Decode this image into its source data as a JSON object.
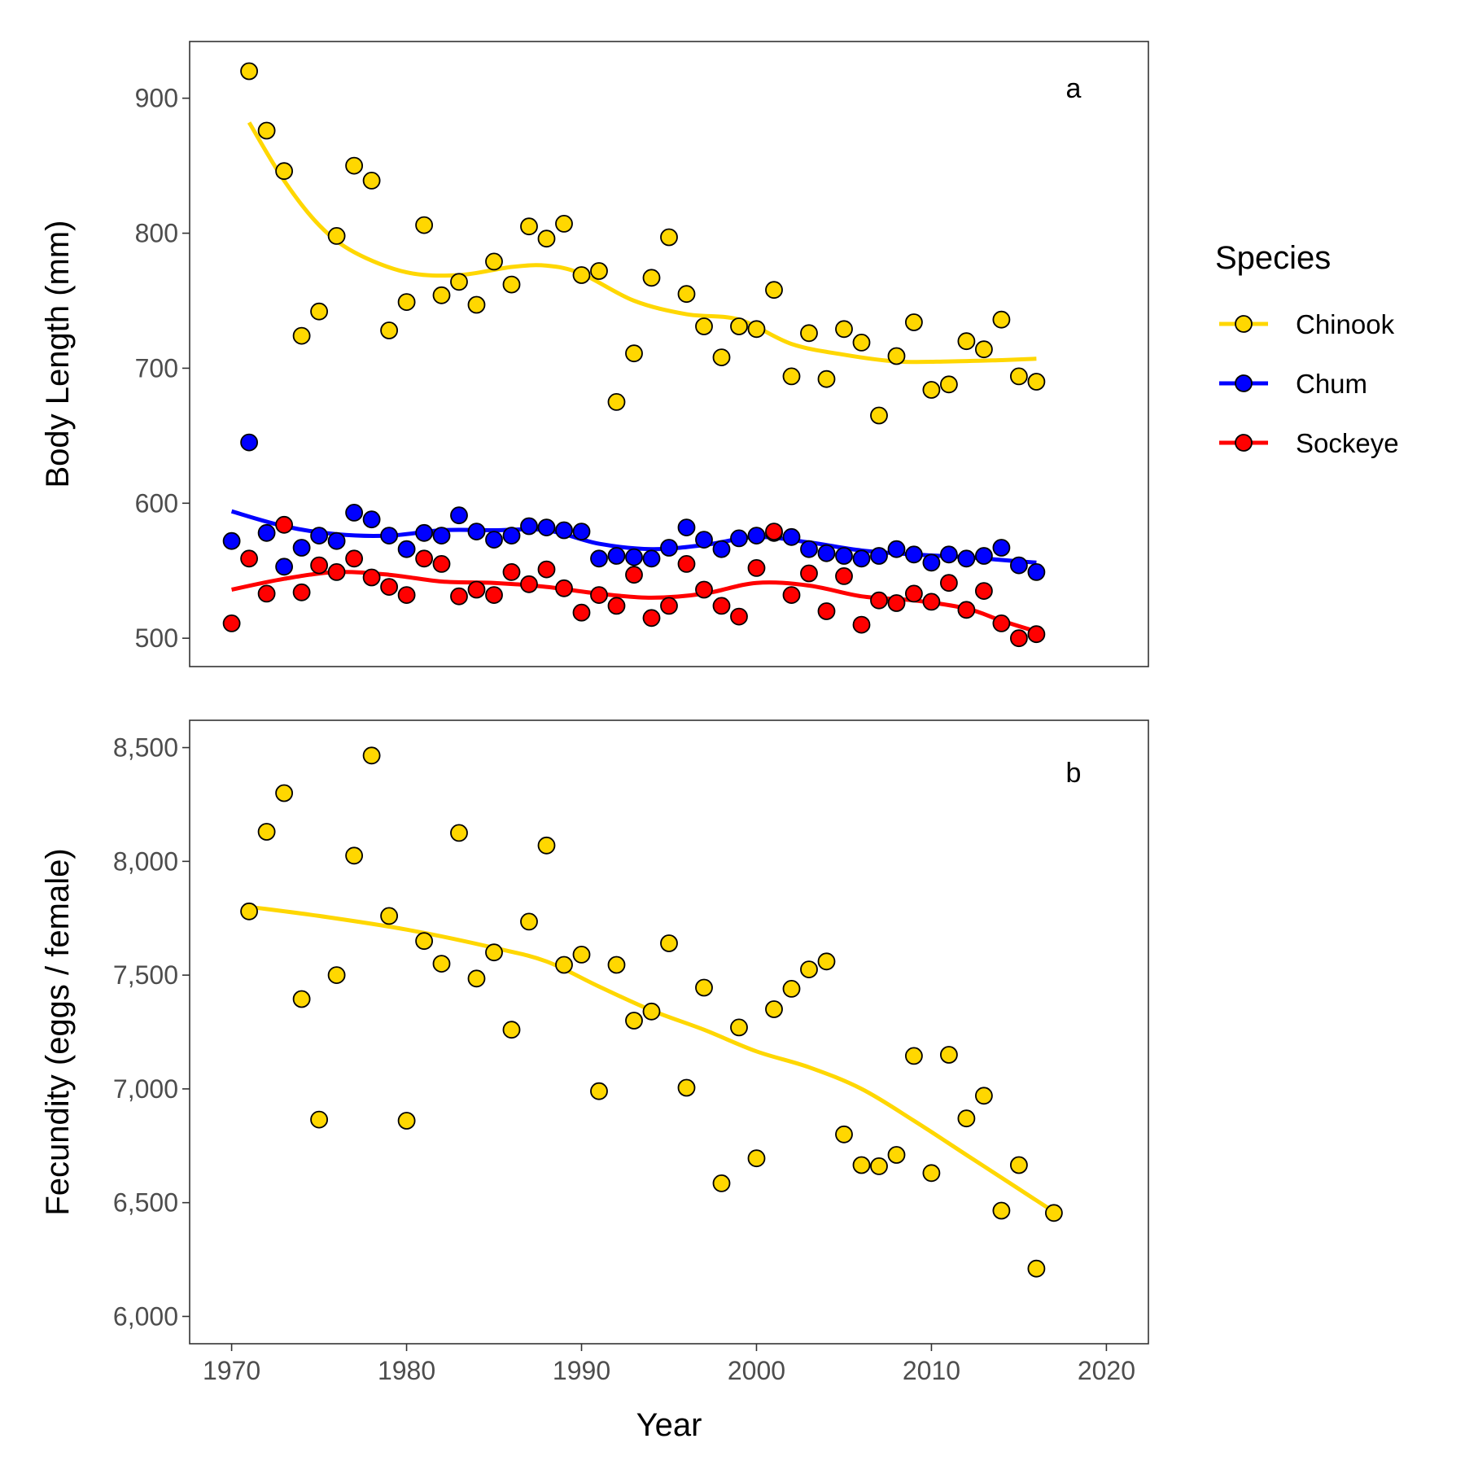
{
  "chart_data": [
    {
      "type": "scatter",
      "panel_tag": "a",
      "ylabel": "Body Length (mm)",
      "xlabel": "",
      "xlim": [
        1967.6,
        2022.4
      ],
      "ylim": [
        479,
        942
      ],
      "y_ticks": [
        500,
        600,
        700,
        800,
        900
      ],
      "y_tick_labels": [
        "500",
        "600",
        "700",
        "800",
        "900"
      ],
      "x_ticks_shown": false,
      "grid": false,
      "series": [
        {
          "name": "Chinook",
          "color": "#FFD700",
          "points": [
            [
              1971,
              920
            ],
            [
              1972,
              876
            ],
            [
              1973,
              846
            ],
            [
              1974,
              724
            ],
            [
              1975,
              742
            ],
            [
              1976,
              798
            ],
            [
              1977,
              850
            ],
            [
              1978,
              839
            ],
            [
              1979,
              728
            ],
            [
              1980,
              749
            ],
            [
              1981,
              806
            ],
            [
              1982,
              754
            ],
            [
              1983,
              764
            ],
            [
              1984,
              747
            ],
            [
              1985,
              779
            ],
            [
              1986,
              762
            ],
            [
              1987,
              805
            ],
            [
              1988,
              796
            ],
            [
              1989,
              807
            ],
            [
              1990,
              769
            ],
            [
              1991,
              772
            ],
            [
              1992,
              675
            ],
            [
              1993,
              711
            ],
            [
              1994,
              767
            ],
            [
              1995,
              797
            ],
            [
              1996,
              755
            ],
            [
              1997,
              731
            ],
            [
              1998,
              708
            ],
            [
              1999,
              731
            ],
            [
              2000,
              729
            ],
            [
              2001,
              758
            ],
            [
              2002,
              694
            ],
            [
              2003,
              726
            ],
            [
              2004,
              692
            ],
            [
              2005,
              729
            ],
            [
              2006,
              719
            ],
            [
              2007,
              665
            ],
            [
              2008,
              709
            ],
            [
              2009,
              734
            ],
            [
              2010,
              684
            ],
            [
              2011,
              688
            ],
            [
              2012,
              720
            ],
            [
              2013,
              714
            ],
            [
              2014,
              736
            ],
            [
              2015,
              694
            ],
            [
              2016,
              690
            ]
          ],
          "trend": [
            [
              1971,
              882
            ],
            [
              1973,
              839
            ],
            [
              1975,
              806
            ],
            [
              1977,
              786
            ],
            [
              1980,
              771
            ],
            [
              1983,
              769
            ],
            [
              1986,
              775
            ],
            [
              1988,
              776
            ],
            [
              1990,
              770
            ],
            [
              1993,
              750
            ],
            [
              1996,
              740
            ],
            [
              1999,
              736
            ],
            [
              2002,
              718
            ],
            [
              2005,
              710
            ],
            [
              2008,
              705
            ],
            [
              2011,
              705
            ],
            [
              2014,
              706
            ],
            [
              2016,
              707
            ]
          ]
        },
        {
          "name": "Chum",
          "color": "#0000FF",
          "points": [
            [
              1970,
              572
            ],
            [
              1971,
              645
            ],
            [
              1972,
              578
            ],
            [
              1973,
              553
            ],
            [
              1974,
              567
            ],
            [
              1975,
              576
            ],
            [
              1976,
              572
            ],
            [
              1977,
              593
            ],
            [
              1978,
              588
            ],
            [
              1979,
              576
            ],
            [
              1980,
              566
            ],
            [
              1981,
              578
            ],
            [
              1982,
              576
            ],
            [
              1983,
              591
            ],
            [
              1984,
              579
            ],
            [
              1985,
              573
            ],
            [
              1986,
              576
            ],
            [
              1987,
              583
            ],
            [
              1988,
              582
            ],
            [
              1989,
              580
            ],
            [
              1990,
              579
            ],
            [
              1991,
              559
            ],
            [
              1992,
              561
            ],
            [
              1993,
              560
            ],
            [
              1994,
              559
            ],
            [
              1995,
              567
            ],
            [
              1996,
              582
            ],
            [
              1997,
              573
            ],
            [
              1998,
              566
            ],
            [
              1999,
              574
            ],
            [
              2000,
              576
            ],
            [
              2001,
              578
            ],
            [
              2002,
              575
            ],
            [
              2003,
              566
            ],
            [
              2004,
              563
            ],
            [
              2005,
              561
            ],
            [
              2006,
              559
            ],
            [
              2007,
              561
            ],
            [
              2008,
              566
            ],
            [
              2009,
              562
            ],
            [
              2010,
              556
            ],
            [
              2011,
              562
            ],
            [
              2012,
              559
            ],
            [
              2013,
              561
            ],
            [
              2014,
              567
            ],
            [
              2015,
              554
            ],
            [
              2016,
              549
            ]
          ],
          "trend": [
            [
              1970,
              594
            ],
            [
              1973,
              583
            ],
            [
              1976,
              577
            ],
            [
              1979,
              576
            ],
            [
              1982,
              580
            ],
            [
              1985,
              580
            ],
            [
              1988,
              580
            ],
            [
              1991,
              570
            ],
            [
              1994,
              566
            ],
            [
              1997,
              569
            ],
            [
              2000,
              575
            ],
            [
              2003,
              571
            ],
            [
              2006,
              565
            ],
            [
              2009,
              562
            ],
            [
              2012,
              560
            ],
            [
              2014,
              558
            ],
            [
              2016,
              556
            ]
          ]
        },
        {
          "name": "Sockeye",
          "color": "#FF0000",
          "points": [
            [
              1970,
              511
            ],
            [
              1971,
              559
            ],
            [
              1972,
              533
            ],
            [
              1973,
              584
            ],
            [
              1974,
              534
            ],
            [
              1975,
              554
            ],
            [
              1976,
              549
            ],
            [
              1977,
              559
            ],
            [
              1978,
              545
            ],
            [
              1979,
              538
            ],
            [
              1980,
              532
            ],
            [
              1981,
              559
            ],
            [
              1982,
              555
            ],
            [
              1983,
              531
            ],
            [
              1984,
              536
            ],
            [
              1985,
              532
            ],
            [
              1986,
              549
            ],
            [
              1987,
              540
            ],
            [
              1988,
              551
            ],
            [
              1989,
              537
            ],
            [
              1990,
              519
            ],
            [
              1991,
              532
            ],
            [
              1992,
              524
            ],
            [
              1993,
              547
            ],
            [
              1994,
              515
            ],
            [
              1995,
              524
            ],
            [
              1996,
              555
            ],
            [
              1997,
              536
            ],
            [
              1998,
              524
            ],
            [
              1999,
              516
            ],
            [
              2000,
              552
            ],
            [
              2001,
              579
            ],
            [
              2002,
              532
            ],
            [
              2003,
              548
            ],
            [
              2004,
              520
            ],
            [
              2005,
              546
            ],
            [
              2006,
              510
            ],
            [
              2007,
              528
            ],
            [
              2008,
              526
            ],
            [
              2009,
              533
            ],
            [
              2010,
              527
            ],
            [
              2011,
              541
            ],
            [
              2012,
              521
            ],
            [
              2013,
              535
            ],
            [
              2014,
              511
            ],
            [
              2015,
              500
            ],
            [
              2016,
              503
            ]
          ],
          "trend": [
            [
              1970,
              536
            ],
            [
              1973,
              544
            ],
            [
              1976,
              549
            ],
            [
              1979,
              547
            ],
            [
              1982,
              542
            ],
            [
              1985,
              541
            ],
            [
              1988,
              538
            ],
            [
              1991,
              533
            ],
            [
              1994,
              530
            ],
            [
              1997,
              533
            ],
            [
              2000,
              541
            ],
            [
              2003,
              539
            ],
            [
              2006,
              531
            ],
            [
              2009,
              528
            ],
            [
              2012,
              522
            ],
            [
              2014,
              513
            ],
            [
              2016,
              505
            ]
          ]
        }
      ]
    },
    {
      "type": "scatter",
      "panel_tag": "b",
      "ylabel": "Fecundity (eggs / female)",
      "xlabel": "Year",
      "xlim": [
        1967.6,
        2022.4
      ],
      "ylim": [
        5880,
        8620
      ],
      "x_ticks": [
        1970,
        1980,
        1990,
        2000,
        2010,
        2020
      ],
      "x_tick_labels": [
        "1970",
        "1980",
        "1990",
        "2000",
        "2010",
        "2020"
      ],
      "y_ticks": [
        6000,
        6500,
        7000,
        7500,
        8000,
        8500
      ],
      "y_tick_labels": [
        "6,000",
        "6,500",
        "7,000",
        "7,500",
        "8,000",
        "8,500"
      ],
      "grid": false,
      "series": [
        {
          "name": "Chinook",
          "color": "#FFD700",
          "points": [
            [
              1971,
              7780
            ],
            [
              1972,
              8130
            ],
            [
              1973,
              8300
            ],
            [
              1974,
              7395
            ],
            [
              1975,
              6865
            ],
            [
              1976,
              7500
            ],
            [
              1977,
              8025
            ],
            [
              1978,
              8465
            ],
            [
              1979,
              7760
            ],
            [
              1980,
              6860
            ],
            [
              1981,
              7650
            ],
            [
              1982,
              7550
            ],
            [
              1983,
              8125
            ],
            [
              1984,
              7485
            ],
            [
              1985,
              7600
            ],
            [
              1986,
              7260
            ],
            [
              1987,
              7735
            ],
            [
              1988,
              8070
            ],
            [
              1989,
              7545
            ],
            [
              1990,
              7590
            ],
            [
              1991,
              6990
            ],
            [
              1992,
              7545
            ],
            [
              1993,
              7300
            ],
            [
              1994,
              7340
            ],
            [
              1995,
              7640
            ],
            [
              1996,
              7005
            ],
            [
              1997,
              7445
            ],
            [
              1998,
              6585
            ],
            [
              1999,
              7270
            ],
            [
              2000,
              6695
            ],
            [
              2001,
              7350
            ],
            [
              2002,
              7440
            ],
            [
              2003,
              7525
            ],
            [
              2004,
              7560
            ],
            [
              2005,
              6800
            ],
            [
              2006,
              6665
            ],
            [
              2007,
              6660
            ],
            [
              2008,
              6710
            ],
            [
              2009,
              7145
            ],
            [
              2010,
              6630
            ],
            [
              2011,
              7150
            ],
            [
              2012,
              6870
            ],
            [
              2013,
              6970
            ],
            [
              2014,
              6465
            ],
            [
              2015,
              6665
            ],
            [
              2016,
              6210
            ],
            [
              2017,
              6455
            ]
          ],
          "trend": [
            [
              1971,
              7800
            ],
            [
              1975,
              7760
            ],
            [
              1980,
              7700
            ],
            [
              1985,
              7620
            ],
            [
              1988,
              7560
            ],
            [
              1991,
              7450
            ],
            [
              1994,
              7345
            ],
            [
              1997,
              7260
            ],
            [
              2000,
              7165
            ],
            [
              2003,
              7095
            ],
            [
              2006,
              7000
            ],
            [
              2009,
              6860
            ],
            [
              2012,
              6710
            ],
            [
              2015,
              6560
            ],
            [
              2017,
              6460
            ]
          ]
        }
      ]
    }
  ],
  "legend": {
    "title": "Species",
    "placement": "right",
    "items": [
      {
        "label": "Chinook",
        "color": "#FFD700"
      },
      {
        "label": "Chum",
        "color": "#0000FF"
      },
      {
        "label": "Sockeye",
        "color": "#FF0000"
      }
    ]
  }
}
